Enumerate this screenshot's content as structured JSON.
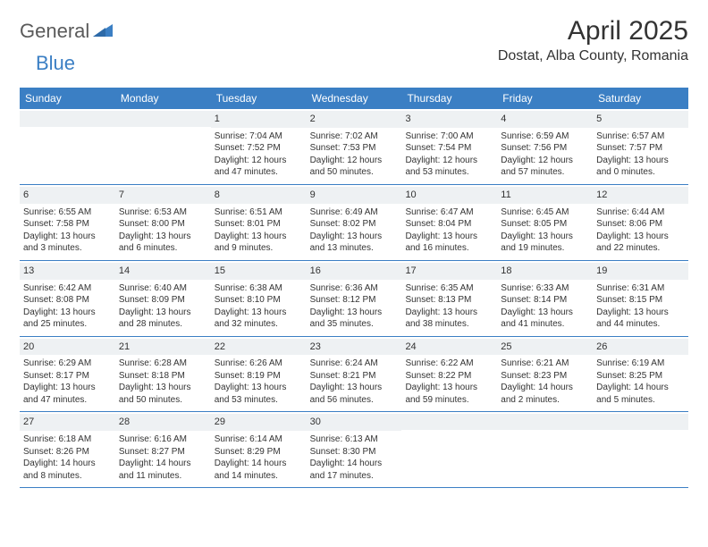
{
  "logo": {
    "text1": "General",
    "text2": "Blue"
  },
  "title": "April 2025",
  "location": "Dostat, Alba County, Romania",
  "colors": {
    "header_bg": "#3b7fc4",
    "header_text": "#ffffff",
    "daynum_bg": "#eef1f3",
    "text": "#333333",
    "week_border": "#3b7fc4"
  },
  "typography": {
    "title_fontsize": 30,
    "location_fontsize": 16,
    "dayheader_fontsize": 12,
    "cell_fontsize": 10
  },
  "day_headers": [
    "Sunday",
    "Monday",
    "Tuesday",
    "Wednesday",
    "Thursday",
    "Friday",
    "Saturday"
  ],
  "weeks": [
    [
      {
        "empty": true
      },
      {
        "empty": true
      },
      {
        "day": "1",
        "sunrise": "Sunrise: 7:04 AM",
        "sunset": "Sunset: 7:52 PM",
        "daylight": "Daylight: 12 hours and 47 minutes."
      },
      {
        "day": "2",
        "sunrise": "Sunrise: 7:02 AM",
        "sunset": "Sunset: 7:53 PM",
        "daylight": "Daylight: 12 hours and 50 minutes."
      },
      {
        "day": "3",
        "sunrise": "Sunrise: 7:00 AM",
        "sunset": "Sunset: 7:54 PM",
        "daylight": "Daylight: 12 hours and 53 minutes."
      },
      {
        "day": "4",
        "sunrise": "Sunrise: 6:59 AM",
        "sunset": "Sunset: 7:56 PM",
        "daylight": "Daylight: 12 hours and 57 minutes."
      },
      {
        "day": "5",
        "sunrise": "Sunrise: 6:57 AM",
        "sunset": "Sunset: 7:57 PM",
        "daylight": "Daylight: 13 hours and 0 minutes."
      }
    ],
    [
      {
        "day": "6",
        "sunrise": "Sunrise: 6:55 AM",
        "sunset": "Sunset: 7:58 PM",
        "daylight": "Daylight: 13 hours and 3 minutes."
      },
      {
        "day": "7",
        "sunrise": "Sunrise: 6:53 AM",
        "sunset": "Sunset: 8:00 PM",
        "daylight": "Daylight: 13 hours and 6 minutes."
      },
      {
        "day": "8",
        "sunrise": "Sunrise: 6:51 AM",
        "sunset": "Sunset: 8:01 PM",
        "daylight": "Daylight: 13 hours and 9 minutes."
      },
      {
        "day": "9",
        "sunrise": "Sunrise: 6:49 AM",
        "sunset": "Sunset: 8:02 PM",
        "daylight": "Daylight: 13 hours and 13 minutes."
      },
      {
        "day": "10",
        "sunrise": "Sunrise: 6:47 AM",
        "sunset": "Sunset: 8:04 PM",
        "daylight": "Daylight: 13 hours and 16 minutes."
      },
      {
        "day": "11",
        "sunrise": "Sunrise: 6:45 AM",
        "sunset": "Sunset: 8:05 PM",
        "daylight": "Daylight: 13 hours and 19 minutes."
      },
      {
        "day": "12",
        "sunrise": "Sunrise: 6:44 AM",
        "sunset": "Sunset: 8:06 PM",
        "daylight": "Daylight: 13 hours and 22 minutes."
      }
    ],
    [
      {
        "day": "13",
        "sunrise": "Sunrise: 6:42 AM",
        "sunset": "Sunset: 8:08 PM",
        "daylight": "Daylight: 13 hours and 25 minutes."
      },
      {
        "day": "14",
        "sunrise": "Sunrise: 6:40 AM",
        "sunset": "Sunset: 8:09 PM",
        "daylight": "Daylight: 13 hours and 28 minutes."
      },
      {
        "day": "15",
        "sunrise": "Sunrise: 6:38 AM",
        "sunset": "Sunset: 8:10 PM",
        "daylight": "Daylight: 13 hours and 32 minutes."
      },
      {
        "day": "16",
        "sunrise": "Sunrise: 6:36 AM",
        "sunset": "Sunset: 8:12 PM",
        "daylight": "Daylight: 13 hours and 35 minutes."
      },
      {
        "day": "17",
        "sunrise": "Sunrise: 6:35 AM",
        "sunset": "Sunset: 8:13 PM",
        "daylight": "Daylight: 13 hours and 38 minutes."
      },
      {
        "day": "18",
        "sunrise": "Sunrise: 6:33 AM",
        "sunset": "Sunset: 8:14 PM",
        "daylight": "Daylight: 13 hours and 41 minutes."
      },
      {
        "day": "19",
        "sunrise": "Sunrise: 6:31 AM",
        "sunset": "Sunset: 8:15 PM",
        "daylight": "Daylight: 13 hours and 44 minutes."
      }
    ],
    [
      {
        "day": "20",
        "sunrise": "Sunrise: 6:29 AM",
        "sunset": "Sunset: 8:17 PM",
        "daylight": "Daylight: 13 hours and 47 minutes."
      },
      {
        "day": "21",
        "sunrise": "Sunrise: 6:28 AM",
        "sunset": "Sunset: 8:18 PM",
        "daylight": "Daylight: 13 hours and 50 minutes."
      },
      {
        "day": "22",
        "sunrise": "Sunrise: 6:26 AM",
        "sunset": "Sunset: 8:19 PM",
        "daylight": "Daylight: 13 hours and 53 minutes."
      },
      {
        "day": "23",
        "sunrise": "Sunrise: 6:24 AM",
        "sunset": "Sunset: 8:21 PM",
        "daylight": "Daylight: 13 hours and 56 minutes."
      },
      {
        "day": "24",
        "sunrise": "Sunrise: 6:22 AM",
        "sunset": "Sunset: 8:22 PM",
        "daylight": "Daylight: 13 hours and 59 minutes."
      },
      {
        "day": "25",
        "sunrise": "Sunrise: 6:21 AM",
        "sunset": "Sunset: 8:23 PM",
        "daylight": "Daylight: 14 hours and 2 minutes."
      },
      {
        "day": "26",
        "sunrise": "Sunrise: 6:19 AM",
        "sunset": "Sunset: 8:25 PM",
        "daylight": "Daylight: 14 hours and 5 minutes."
      }
    ],
    [
      {
        "day": "27",
        "sunrise": "Sunrise: 6:18 AM",
        "sunset": "Sunset: 8:26 PM",
        "daylight": "Daylight: 14 hours and 8 minutes."
      },
      {
        "day": "28",
        "sunrise": "Sunrise: 6:16 AM",
        "sunset": "Sunset: 8:27 PM",
        "daylight": "Daylight: 14 hours and 11 minutes."
      },
      {
        "day": "29",
        "sunrise": "Sunrise: 6:14 AM",
        "sunset": "Sunset: 8:29 PM",
        "daylight": "Daylight: 14 hours and 14 minutes."
      },
      {
        "day": "30",
        "sunrise": "Sunrise: 6:13 AM",
        "sunset": "Sunset: 8:30 PM",
        "daylight": "Daylight: 14 hours and 17 minutes."
      },
      {
        "empty": true
      },
      {
        "empty": true
      },
      {
        "empty": true
      }
    ]
  ]
}
